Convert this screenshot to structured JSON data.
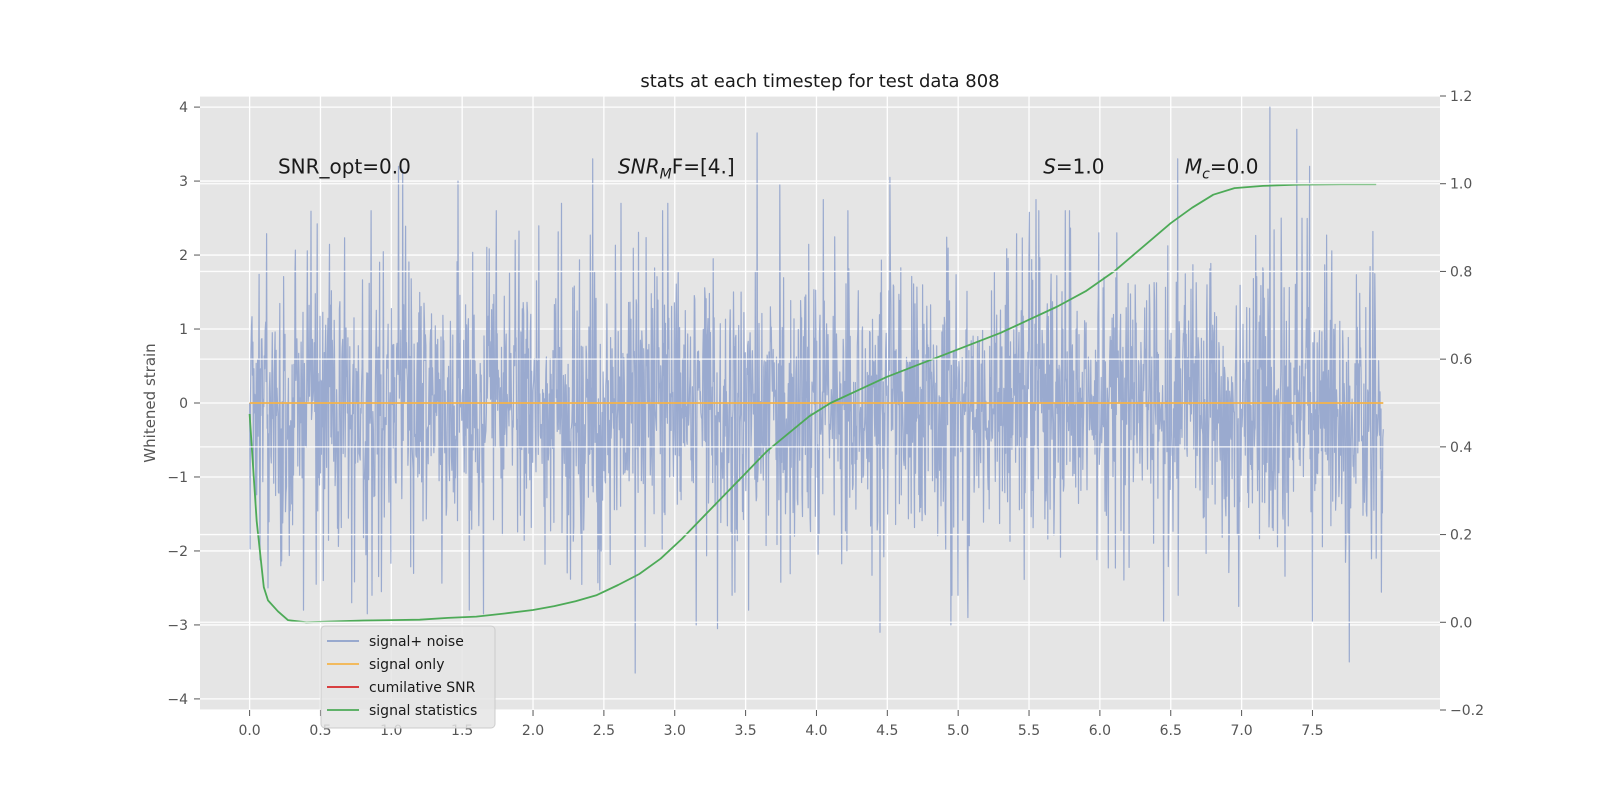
{
  "chart_data": {
    "type": "line",
    "title": "stats at each timestep for test data 808",
    "ylabel": "Whitened strain",
    "xlim": [
      -0.35,
      8.4
    ],
    "ylim": [
      -4.15,
      4.15
    ],
    "y2lim": [
      -0.2,
      1.2
    ],
    "x_ticks": [
      "0.0",
      "0.5",
      "1.0",
      "1.5",
      "2.0",
      "2.5",
      "3.0",
      "3.5",
      "4.0",
      "4.5",
      "5.0",
      "5.5",
      "6.0",
      "6.5",
      "7.0",
      "7.5"
    ],
    "y_ticks": [
      "−4",
      "−3",
      "−2",
      "−1",
      "0",
      "1",
      "2",
      "3",
      "4"
    ],
    "y2_ticks": [
      "−0.2",
      "0.0",
      "0.2",
      "0.4",
      "0.6",
      "0.8",
      "1.0",
      "1.2"
    ],
    "grid": true,
    "legend_position": "lower-left",
    "annotations": [
      {
        "text": "SNR_opt=0.0",
        "x": 0.2,
        "y": 3.2
      },
      {
        "main": "SNR",
        "sub": "M",
        "rest": "F=[4.]",
        "x": 2.6,
        "y": 3.2
      },
      {
        "main": "S",
        "rest": "=1.0",
        "x": 5.6,
        "y": 3.2
      },
      {
        "main": "M",
        "sub": "c",
        "rest": "=0.0",
        "x": 6.6,
        "y": 3.2
      }
    ],
    "series": [
      {
        "name": "signal+ noise",
        "color": "#8da0cb",
        "axis": "left",
        "t_range": [
          0.0,
          8.0
        ],
        "sigma": 0.95,
        "samples": 2400,
        "seed": 808,
        "spikes": [
          [
            0.13,
            -2.5
          ],
          [
            0.22,
            -2.2
          ],
          [
            0.38,
            -2.8
          ],
          [
            0.47,
            -2.45
          ],
          [
            0.52,
            -2.4
          ],
          [
            0.72,
            -2.7
          ],
          [
            0.83,
            -2.85
          ],
          [
            0.93,
            -2.55
          ],
          [
            1.05,
            3.2
          ],
          [
            1.08,
            3.15
          ],
          [
            1.47,
            3.0
          ],
          [
            1.55,
            -2.8
          ],
          [
            1.65,
            -2.85
          ],
          [
            2.2,
            2.7
          ],
          [
            2.42,
            3.3
          ],
          [
            2.48,
            -2.0
          ],
          [
            2.62,
            2.7
          ],
          [
            2.72,
            -3.65
          ],
          [
            2.95,
            2.7
          ],
          [
            3.15,
            -3.0
          ],
          [
            3.3,
            -3.05
          ],
          [
            3.52,
            -2.8
          ],
          [
            3.58,
            3.65
          ],
          [
            3.74,
            2.95
          ],
          [
            4.05,
            2.75
          ],
          [
            4.45,
            -3.1
          ],
          [
            4.52,
            3.05
          ],
          [
            4.95,
            -3.0
          ],
          [
            5.07,
            -2.9
          ],
          [
            5.55,
            2.75
          ],
          [
            6.12,
            2.3
          ],
          [
            6.45,
            -2.95
          ],
          [
            6.55,
            3.3
          ],
          [
            6.98,
            -2.75
          ],
          [
            7.2,
            4.0
          ],
          [
            7.28,
            2.5
          ],
          [
            7.39,
            3.7
          ],
          [
            7.48,
            3.2
          ],
          [
            7.5,
            -2.95
          ],
          [
            7.76,
            -3.5
          ]
        ]
      },
      {
        "name": "signal only",
        "color": "#f4b34a",
        "axis": "left",
        "x": [
          0.0,
          8.0
        ],
        "y": [
          0.0,
          0.0
        ]
      },
      {
        "name": "cumilative SNR",
        "color": "#d62728",
        "axis": "left",
        "x": [],
        "y": []
      },
      {
        "name": "signal statistics",
        "color": "#4daa57",
        "axis": "right",
        "x": [
          0.0,
          0.05,
          0.1,
          0.13,
          0.2,
          0.27,
          0.4,
          0.6,
          0.8,
          1.0,
          1.2,
          1.4,
          1.6,
          1.8,
          2.0,
          2.15,
          2.3,
          2.45,
          2.6,
          2.75,
          2.9,
          3.05,
          3.2,
          3.35,
          3.5,
          3.65,
          3.8,
          3.95,
          4.1,
          4.3,
          4.5,
          4.7,
          4.9,
          5.1,
          5.3,
          5.5,
          5.7,
          5.9,
          6.1,
          6.3,
          6.5,
          6.65,
          6.8,
          6.95,
          7.15,
          7.4,
          7.7,
          7.95
        ],
        "y": [
          0.475,
          0.23,
          0.08,
          0.05,
          0.025,
          0.005,
          0.0,
          0.002,
          0.004,
          0.005,
          0.006,
          0.01,
          0.013,
          0.02,
          0.028,
          0.037,
          0.048,
          0.062,
          0.085,
          0.11,
          0.145,
          0.19,
          0.24,
          0.29,
          0.34,
          0.39,
          0.43,
          0.47,
          0.5,
          0.53,
          0.56,
          0.585,
          0.61,
          0.635,
          0.66,
          0.69,
          0.72,
          0.755,
          0.8,
          0.855,
          0.91,
          0.945,
          0.975,
          0.99,
          0.995,
          0.998,
          0.999,
          0.999
        ]
      }
    ]
  }
}
